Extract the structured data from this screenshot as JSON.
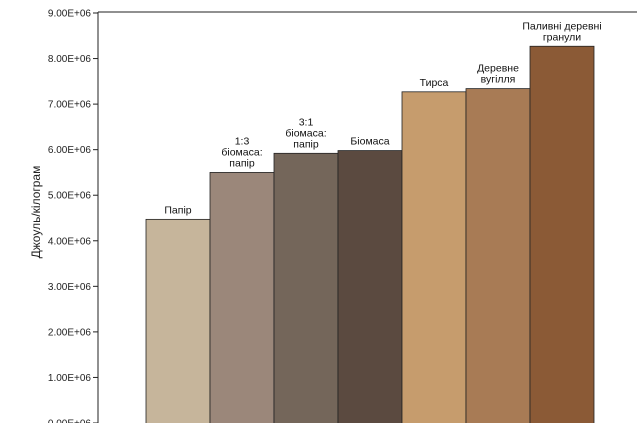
{
  "chart_data": {
    "type": "bar",
    "title": "",
    "xlabel": "",
    "ylabel": "Джоуль/кілограм",
    "ylim": [
      0,
      9000000
    ],
    "yticks": [
      "0.00E+06",
      "1.00E+06",
      "2.00E+06",
      "3.00E+06",
      "4.00E+06",
      "5.00E+06",
      "6.00E+06",
      "7.00E+06",
      "8.00E+06",
      "9.00E+06"
    ],
    "grid": false,
    "categories": [
      "Папір",
      "1:3 біомаса: папір",
      "3:1 біомаса: папір",
      "Біомаса",
      "Тирса",
      "Деревне вугілля",
      "Паливні деревні гранули"
    ],
    "category_label_lines": [
      [
        "Папір"
      ],
      [
        "1:3",
        "біомаса:",
        "папір"
      ],
      [
        "3:1",
        "біомаса:",
        "папір"
      ],
      [
        "Біомаса"
      ],
      [
        "Тирса"
      ],
      [
        "Деревне",
        "вугілля"
      ],
      [
        "Паливні деревні",
        "гранули"
      ]
    ],
    "values": [
      4470000,
      5500000,
      5920000,
      5980000,
      7270000,
      7340000,
      8270000
    ],
    "colors": [
      "#c6b59b",
      "#9b877a",
      "#74665a",
      "#5b4a40",
      "#c69c6d",
      "#a87b55",
      "#8b5a36"
    ]
  }
}
